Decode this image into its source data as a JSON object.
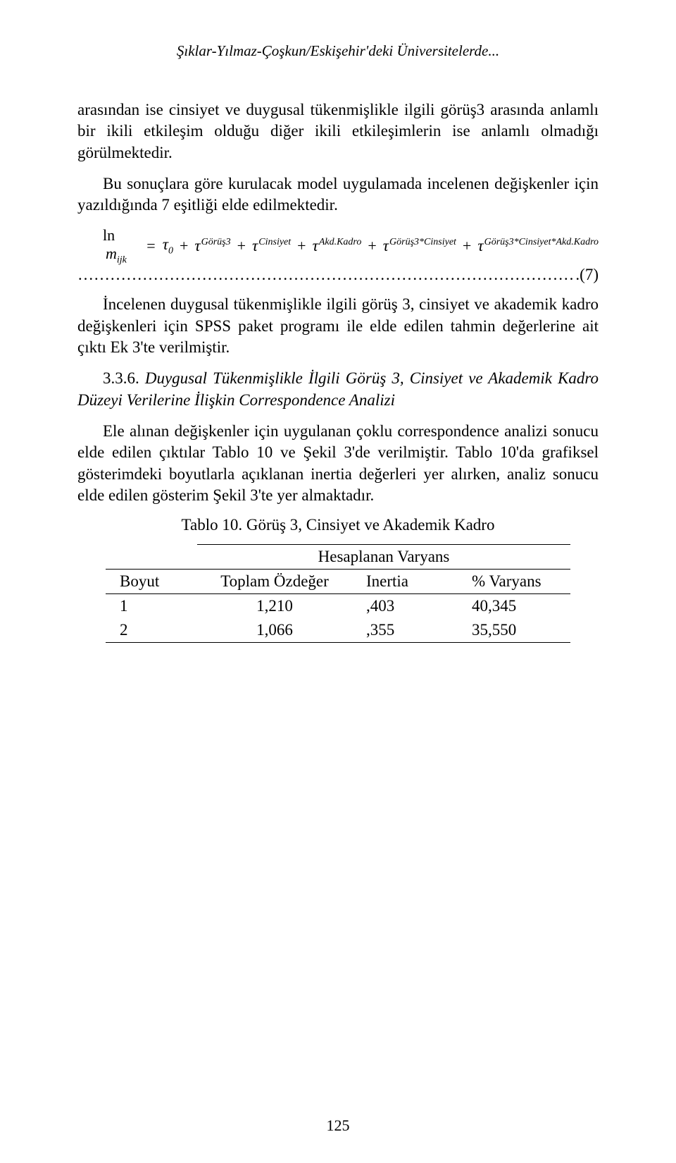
{
  "running_head": "Şıklar-Yılmaz-Çoşkun/Eskişehir'deki Üniversitelerde...",
  "para1": "arasından ise cinsiyet ve duygusal tükenmişlikle ilgili görüş3 arasında anlamlı bir ikili etkileşim olduğu diğer ikili etkileşimlerin ise anlamlı olmadığı görülmektedir.",
  "para2": "Bu sonuçlara göre kurulacak model uygulamada incelenen değişkenler için yazıldığında 7 eşitliği elde edilmektedir.",
  "equation": {
    "lhs_ln": "ln",
    "lhs_m": "m",
    "lhs_sub": "ijk",
    "eq": "=",
    "tau": "τ",
    "plus": "+",
    "t0_sub": "0",
    "t1_sup": "Görüş3",
    "t2_sup": "Cinsiyet",
    "t3_sup": "Akd.Kadro",
    "t4_sup": "Görüş3*Cinsiyet",
    "t5_sup": "Görüş3*Cinsiyet*Akd.Kadro",
    "number": ".(7)"
  },
  "para3": "İncelenen duygusal tükenmişlikle ilgili görüş 3, cinsiyet ve akademik kadro değişkenleri için SPSS paket programı ile elde edilen tahmin değerlerine ait çıktı Ek 3'te verilmiştir.",
  "subhead": {
    "num": "3.3.6. ",
    "title": "Duygusal Tükenmişlikle İlgili Görüş 3, Cinsiyet ve Akademik Kadro Düzeyi Verilerine İlişkin Correspondence Analizi"
  },
  "para4": "Ele alınan değişkenler için uygulanan çoklu correspondence analizi sonucu elde edilen çıktılar Tablo 10 ve Şekil 3'de verilmiştir. Tablo 10'da grafiksel gösterimdeki boyutlarla açıklanan inertia değerleri yer alırken, analiz sonucu elde edilen gösterim Şekil 3'te yer almaktadır.",
  "table": {
    "caption": "Tablo 10. Görüş 3, Cinsiyet ve Akademik Kadro",
    "super_header": "Hesaplanan Varyans",
    "headers": {
      "boyut": "Boyut",
      "ozdeger": "Toplam Özdeğer",
      "inertia": "Inertia",
      "varyans": "% Varyans"
    },
    "rows": [
      {
        "boyut": "1",
        "ozdeger": "1,210",
        "inertia": ",403",
        "varyans": "40,345"
      },
      {
        "boyut": "2",
        "ozdeger": "1,066",
        "inertia": ",355",
        "varyans": "35,550"
      }
    ]
  },
  "page_number": "125"
}
